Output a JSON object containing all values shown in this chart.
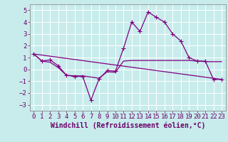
{
  "xlabel": "Windchill (Refroidissement éolien,°C)",
  "background_color": "#c8ecec",
  "grid_color": "#ffffff",
  "line_color": "#800080",
  "xlim": [
    -0.5,
    23.5
  ],
  "ylim": [
    -3.5,
    5.5
  ],
  "yticks": [
    -3,
    -2,
    -1,
    0,
    1,
    2,
    3,
    4,
    5
  ],
  "xticks": [
    0,
    1,
    2,
    3,
    4,
    5,
    6,
    7,
    8,
    9,
    10,
    11,
    12,
    13,
    14,
    15,
    16,
    17,
    18,
    19,
    20,
    21,
    22,
    23
  ],
  "series_main": {
    "x": [
      0,
      1,
      2,
      3,
      4,
      5,
      6,
      7,
      8,
      9,
      10,
      11,
      12,
      13,
      14,
      15,
      16,
      17,
      18,
      19,
      20,
      21,
      22,
      23
    ],
    "y": [
      1.3,
      0.7,
      0.8,
      0.3,
      -0.5,
      -0.6,
      -0.6,
      -2.6,
      -0.8,
      -0.1,
      -0.15,
      1.8,
      4.0,
      3.2,
      4.85,
      4.4,
      4.0,
      3.0,
      2.4,
      1.0,
      0.7,
      0.7,
      -0.85,
      -0.85
    ]
  },
  "series_flat": {
    "x": [
      0,
      1,
      2,
      3,
      4,
      5,
      6,
      7,
      8,
      9,
      10,
      11,
      12,
      13,
      14,
      15,
      16,
      17,
      18,
      19,
      20,
      21,
      22,
      23
    ],
    "y": [
      1.3,
      0.7,
      0.6,
      0.15,
      -0.5,
      -0.55,
      -0.55,
      -0.65,
      -0.75,
      -0.2,
      -0.25,
      0.7,
      0.75,
      0.75,
      0.75,
      0.75,
      0.75,
      0.75,
      0.75,
      0.75,
      0.7,
      0.65,
      0.65,
      0.65
    ]
  },
  "series_diag": {
    "x": [
      0,
      23
    ],
    "y": [
      1.3,
      -0.85
    ]
  },
  "linewidth": 0.9,
  "markersize": 4,
  "xlabel_fontsize": 7,
  "tick_fontsize": 6.5
}
